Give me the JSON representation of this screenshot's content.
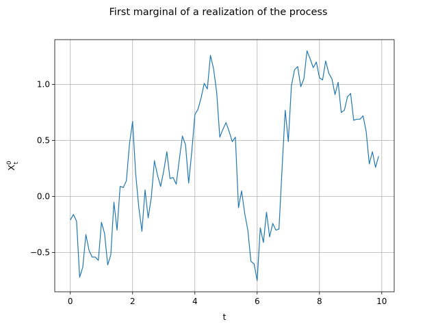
{
  "chart_data": {
    "type": "line",
    "title": "First marginal of a realization of the process",
    "xlabel": "t",
    "ylabel": {
      "base": "X",
      "sup": "0",
      "sub": "t"
    },
    "xlim": [
      -0.5,
      10.4
    ],
    "ylim": [
      -0.85,
      1.4
    ],
    "xticks": [
      0,
      2,
      4,
      6,
      8,
      10
    ],
    "yticks": [
      -0.5,
      0.0,
      0.5,
      1.0
    ],
    "xtick_labels": [
      "0",
      "2",
      "4",
      "6",
      "8",
      "10"
    ],
    "ytick_labels": [
      "−0.5",
      "0.0",
      "0.5",
      "1.0"
    ],
    "grid": true,
    "line_color": "#1f77b4",
    "series": [
      {
        "x": [
          0.0,
          0.1,
          0.2,
          0.3,
          0.4,
          0.5,
          0.6,
          0.7,
          0.8,
          0.9,
          1.0,
          1.1,
          1.2,
          1.3,
          1.4,
          1.5,
          1.6,
          1.7,
          1.8,
          1.9,
          2.0,
          2.1,
          2.2,
          2.3,
          2.4,
          2.5,
          2.6,
          2.7,
          2.8,
          2.9,
          3.0,
          3.1,
          3.2,
          3.3,
          3.4,
          3.5,
          3.6,
          3.7,
          3.8,
          3.9,
          4.0,
          4.1,
          4.2,
          4.3,
          4.4,
          4.5,
          4.6,
          4.7,
          4.8,
          4.9,
          5.0,
          5.1,
          5.2,
          5.3,
          5.4,
          5.5,
          5.6,
          5.7,
          5.8,
          5.9,
          6.0,
          6.1,
          6.2,
          6.3,
          6.4,
          6.5,
          6.6,
          6.7,
          6.8,
          6.9,
          7.0,
          7.1,
          7.2,
          7.3,
          7.4,
          7.5,
          7.6,
          7.7,
          7.8,
          7.9,
          8.0,
          8.1,
          8.2,
          8.3,
          8.4,
          8.5,
          8.6,
          8.7,
          8.8,
          8.9,
          9.0,
          9.1,
          9.2,
          9.3,
          9.4,
          9.5,
          9.6,
          9.7,
          9.8,
          9.9
        ],
        "values": [
          -0.21,
          -0.16,
          -0.22,
          -0.72,
          -0.63,
          -0.34,
          -0.48,
          -0.54,
          -0.54,
          -0.57,
          -0.23,
          -0.33,
          -0.61,
          -0.52,
          -0.05,
          -0.3,
          0.09,
          0.08,
          0.14,
          0.47,
          0.67,
          0.2,
          -0.1,
          -0.31,
          0.06,
          -0.19,
          -0.01,
          0.32,
          0.19,
          0.09,
          0.23,
          0.4,
          0.16,
          0.17,
          0.11,
          0.33,
          0.54,
          0.46,
          0.12,
          0.4,
          0.73,
          0.78,
          0.88,
          1.01,
          0.96,
          1.26,
          1.14,
          0.93,
          0.53,
          0.6,
          0.66,
          0.58,
          0.49,
          0.53,
          -0.1,
          0.05,
          -0.15,
          -0.3,
          -0.58,
          -0.6,
          -0.75,
          -0.28,
          -0.41,
          -0.14,
          -0.36,
          -0.24,
          -0.3,
          -0.29,
          0.25,
          0.77,
          0.49,
          0.99,
          1.13,
          1.16,
          0.98,
          1.05,
          1.3,
          1.23,
          1.15,
          1.2,
          1.06,
          1.04,
          1.21,
          1.1,
          1.05,
          0.91,
          1.02,
          0.75,
          0.77,
          0.89,
          0.92,
          0.68,
          0.69,
          0.69,
          0.72,
          0.58,
          0.29,
          0.4,
          0.26,
          0.36
        ]
      }
    ]
  }
}
